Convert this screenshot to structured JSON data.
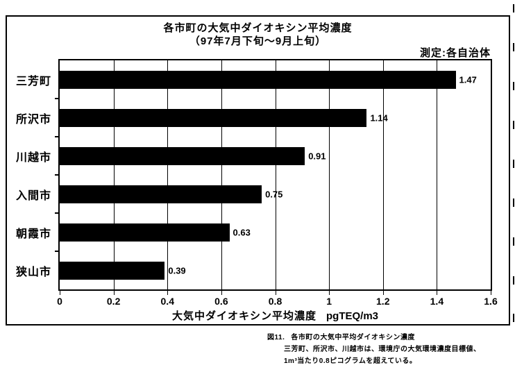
{
  "chart_data": {
    "type": "bar",
    "orientation": "horizontal",
    "title": "各市町の大気中ダイオキシン平均濃度",
    "subtitle": "（97年7月下旬～9月上旬）",
    "note": "測定:各自治体",
    "categories": [
      "三芳町",
      "所沢市",
      "川越市",
      "入間市",
      "朝霞市",
      "狭山市"
    ],
    "values": [
      1.47,
      1.14,
      0.91,
      0.75,
      0.63,
      0.39
    ],
    "value_labels": [
      "1.47",
      "1.14",
      "0.91",
      "0.75",
      "0.63",
      "0.39"
    ],
    "xlabel": "大気中ダイオキシン平均濃度",
    "x_unit": "pgTEQ/m3",
    "xlim": [
      0,
      1.6
    ],
    "x_ticks": [
      0,
      0.2,
      0.4,
      0.6,
      0.8,
      1,
      1.2,
      1.4,
      1.6
    ],
    "x_tick_labels": [
      "0",
      "0.2",
      "0.4",
      "0.6",
      "0.8",
      "1",
      "1.2",
      "1.4",
      "1.6"
    ],
    "grid": "vertical",
    "legend": "none",
    "bar_color": "#000000",
    "background_color": "#ffffff"
  },
  "caption": {
    "fig_label": "図11.",
    "lines": [
      "各市町の大気中平均ダイオキシン濃度",
      "三芳町、所沢市、川越市は、環境庁の大気環境濃度目標値、",
      "1m³当たり0.8ピコグラムを超えている。"
    ]
  }
}
